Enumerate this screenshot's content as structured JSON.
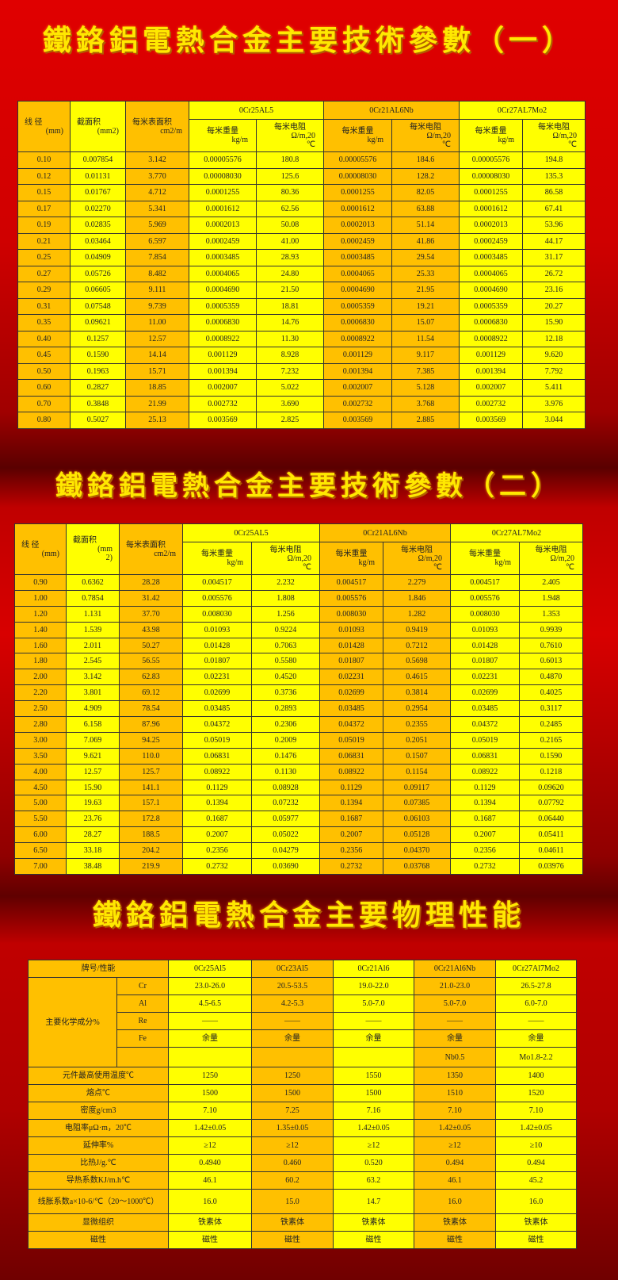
{
  "colors": {
    "yellow": "#ffff00",
    "orange": "#ffc000",
    "title": "#ffe800",
    "background": "#d00000"
  },
  "title1": "鐵鉻鋁電熱合金主要技術參數（一）",
  "title2": "鐵鉻鋁電熱合金主要技術參數（二）",
  "title3": "鐵鉻鋁電熱合金主要物理性能",
  "param_header": {
    "diameter": [
      "线 径",
      "(mm)"
    ],
    "area1": [
      "截面积",
      "(mm2)"
    ],
    "area2": [
      "截面积",
      "(mm",
      "2)"
    ],
    "surface": [
      "每米表面积",
      "cm2/m"
    ],
    "grades": [
      "0Cr25AL5",
      "0Cr21AL6Nb",
      "0Cr27AL7Mo2"
    ],
    "weight": [
      "每米重量",
      "kg/m"
    ],
    "resistance": [
      "每米电阻",
      "Ω/m,20",
      "℃"
    ]
  },
  "table1": [
    [
      "0.10",
      "0.007854",
      "3.142",
      "0.00005576",
      "180.8",
      "0.00005576",
      "184.6",
      "0.00005576",
      "194.8"
    ],
    [
      "0.12",
      "0.01131",
      "3.770",
      "0.00008030",
      "125.6",
      "0.00008030",
      "128.2",
      "0.00008030",
      "135.3"
    ],
    [
      "0.15",
      "0.01767",
      "4.712",
      "0.0001255",
      "80.36",
      "0.0001255",
      "82.05",
      "0.0001255",
      "86.58"
    ],
    [
      "0.17",
      "0.02270",
      "5.341",
      "0.0001612",
      "62.56",
      "0.0001612",
      "63.88",
      "0.0001612",
      "67.41"
    ],
    [
      "0.19",
      "0.02835",
      "5.969",
      "0.0002013",
      "50.08",
      "0.0002013",
      "51.14",
      "0.0002013",
      "53.96"
    ],
    [
      "0.21",
      "0.03464",
      "6.597",
      "0.0002459",
      "41.00",
      "0.0002459",
      "41.86",
      "0.0002459",
      "44.17"
    ],
    [
      "0.25",
      "0.04909",
      "7.854",
      "0.0003485",
      "28.93",
      "0.0003485",
      "29.54",
      "0.0003485",
      "31.17"
    ],
    [
      "0.27",
      "0.05726",
      "8.482",
      "0.0004065",
      "24.80",
      "0.0004065",
      "25.33",
      "0.0004065",
      "26.72"
    ],
    [
      "0.29",
      "0.06605",
      "9.111",
      "0.0004690",
      "21.50",
      "0.0004690",
      "21.95",
      "0.0004690",
      "23.16"
    ],
    [
      "0.31",
      "0.07548",
      "9.739",
      "0.0005359",
      "18.81",
      "0.0005359",
      "19.21",
      "0.0005359",
      "20.27"
    ],
    [
      "0.35",
      "0.09621",
      "11.00",
      "0.0006830",
      "14.76",
      "0.0006830",
      "15.07",
      "0.0006830",
      "15.90"
    ],
    [
      "0.40",
      "0.1257",
      "12.57",
      "0.0008922",
      "11.30",
      "0.0008922",
      "11.54",
      "0.0008922",
      "12.18"
    ],
    [
      "0.45",
      "0.1590",
      "14.14",
      "0.001129",
      "8.928",
      "0.001129",
      "9.117",
      "0.001129",
      "9.620"
    ],
    [
      "0.50",
      "0.1963",
      "15.71",
      "0.001394",
      "7.232",
      "0.001394",
      "7.385",
      "0.001394",
      "7.792"
    ],
    [
      "0.60",
      "0.2827",
      "18.85",
      "0.002007",
      "5.022",
      "0.002007",
      "5.128",
      "0.002007",
      "5.411"
    ],
    [
      "0.70",
      "0.3848",
      "21.99",
      "0.002732",
      "3.690",
      "0.002732",
      "3.768",
      "0.002732",
      "3.976"
    ],
    [
      "0.80",
      "0.5027",
      "25.13",
      "0.003569",
      "2.825",
      "0.003569",
      "2.885",
      "0.003569",
      "3.044"
    ]
  ],
  "table2": [
    [
      "0.90",
      "0.6362",
      "28.28",
      "0.004517",
      "2.232",
      "0.004517",
      "2.279",
      "0.004517",
      "2.405"
    ],
    [
      "1.00",
      "0.7854",
      "31.42",
      "0.005576",
      "1.808",
      "0.005576",
      "1.846",
      "0.005576",
      "1.948"
    ],
    [
      "1.20",
      "1.131",
      "37.70",
      "0.008030",
      "1.256",
      "0.008030",
      "1.282",
      "0.008030",
      "1.353"
    ],
    [
      "1.40",
      "1.539",
      "43.98",
      "0.01093",
      "0.9224",
      "0.01093",
      "0.9419",
      "0.01093",
      "0.9939"
    ],
    [
      "1.60",
      "2.011",
      "50.27",
      "0.01428",
      "0.7063",
      "0.01428",
      "0.7212",
      "0.01428",
      "0.7610"
    ],
    [
      "1.80",
      "2.545",
      "56.55",
      "0.01807",
      "0.5580",
      "0.01807",
      "0.5698",
      "0.01807",
      "0.6013"
    ],
    [
      "2.00",
      "3.142",
      "62.83",
      "0.02231",
      "0.4520",
      "0.02231",
      "0.4615",
      "0.02231",
      "0.4870"
    ],
    [
      "2.20",
      "3.801",
      "69.12",
      "0.02699",
      "0.3736",
      "0.02699",
      "0.3814",
      "0.02699",
      "0.4025"
    ],
    [
      "2.50",
      "4.909",
      "78.54",
      "0.03485",
      "0.2893",
      "0.03485",
      "0.2954",
      "0.03485",
      "0.3117"
    ],
    [
      "2.80",
      "6.158",
      "87.96",
      "0.04372",
      "0.2306",
      "0.04372",
      "0.2355",
      "0.04372",
      "0.2485"
    ],
    [
      "3.00",
      "7.069",
      "94.25",
      "0.05019",
      "0.2009",
      "0.05019",
      "0.2051",
      "0.05019",
      "0.2165"
    ],
    [
      "3.50",
      "9.621",
      "110.0",
      "0.06831",
      "0.1476",
      "0.06831",
      "0.1507",
      "0.06831",
      "0.1590"
    ],
    [
      "4.00",
      "12.57",
      "125.7",
      "0.08922",
      "0.1130",
      "0.08922",
      "0.1154",
      "0.08922",
      "0.1218"
    ],
    [
      "4.50",
      "15.90",
      "141.1",
      "0.1129",
      "0.08928",
      "0.1129",
      "0.09117",
      "0.1129",
      "0.09620"
    ],
    [
      "5.00",
      "19.63",
      "157.1",
      "0.1394",
      "0.07232",
      "0.1394",
      "0.07385",
      "0.1394",
      "0.07792"
    ],
    [
      "5.50",
      "23.76",
      "172.8",
      "0.1687",
      "0.05977",
      "0.1687",
      "0.06103",
      "0.1687",
      "0.06440"
    ],
    [
      "6.00",
      "28.27",
      "188.5",
      "0.2007",
      "0.05022",
      "0.2007",
      "0.05128",
      "0.2007",
      "0.05411"
    ],
    [
      "6.50",
      "33.18",
      "204.2",
      "0.2356",
      "0.04279",
      "0.2356",
      "0.04370",
      "0.2356",
      "0.04611"
    ],
    [
      "7.00",
      "38.48",
      "219.9",
      "0.2732",
      "0.03690",
      "0.2732",
      "0.03768",
      "0.2732",
      "0.03976"
    ]
  ],
  "table3": {
    "header_label": "牌号/性能",
    "grades": [
      "0Cr25Al5",
      "0Cr23Al5",
      "0Cr21Al6",
      "0Cr21Al6Nb",
      "0Cr27Al7Mo2"
    ],
    "composition_label": "主要化学成分%",
    "composition": [
      {
        "element": "Cr",
        "values": [
          "23.0-26.0",
          "20.5-53.5",
          "19.0-22.0",
          "21.0-23.0",
          "26.5-27.8"
        ]
      },
      {
        "element": "Al",
        "values": [
          "4.5-6.5",
          "4.2-5.3",
          "5.0-7.0",
          "5.0-7.0",
          "6.0-7.0"
        ]
      },
      {
        "element": "Re",
        "values": [
          "——",
          "——",
          "——",
          "——",
          "——"
        ]
      },
      {
        "element": "Fe",
        "values": [
          "余量",
          "余量",
          "余量",
          "余量",
          "余量"
        ]
      },
      {
        "element": "",
        "values": [
          "",
          "",
          "",
          "Nb0.5",
          "Mo1.8-2.2"
        ]
      }
    ],
    "properties": [
      {
        "label": "元件最高使用温度℃",
        "values": [
          "1250",
          "1250",
          "1550",
          "1350",
          "1400"
        ]
      },
      {
        "label": "熔点℃",
        "values": [
          "1500",
          "1500",
          "1500",
          "1510",
          "1520"
        ]
      },
      {
        "label": "密度g/cm3",
        "values": [
          "7.10",
          "7.25",
          "7.16",
          "7.10",
          "7.10"
        ]
      },
      {
        "label": "电阻率μΩ·m，20℃",
        "values": [
          "1.42±0.05",
          "1.35±0.05",
          "1.42±0.05",
          "1.42±0.05",
          "1.42±0.05"
        ]
      },
      {
        "label": "延伸率%",
        "values": [
          "≥12",
          "≥12",
          "≥12",
          "≥12",
          "≥10"
        ]
      },
      {
        "label": "比热J/g.℃",
        "values": [
          "0.4940",
          "0.460",
          "0.520",
          "0.494",
          "0.494"
        ]
      },
      {
        "label": "导热系数KJ/m.h℃",
        "values": [
          "46.1",
          "60.2",
          "63.2",
          "46.1",
          "45.2"
        ]
      },
      {
        "label": "线胀系数a×10-6/℃（20～1000℃）",
        "values": [
          "16.0",
          "15.0",
          "14.7",
          "16.0",
          "16.0"
        ]
      },
      {
        "label": "显微组织",
        "values": [
          "铁素体",
          "铁素体",
          "铁素体",
          "铁素体",
          "铁素体"
        ]
      },
      {
        "label": "磁性",
        "values": [
          "磁性",
          "磁性",
          "磁性",
          "磁性",
          "磁性"
        ]
      }
    ]
  }
}
